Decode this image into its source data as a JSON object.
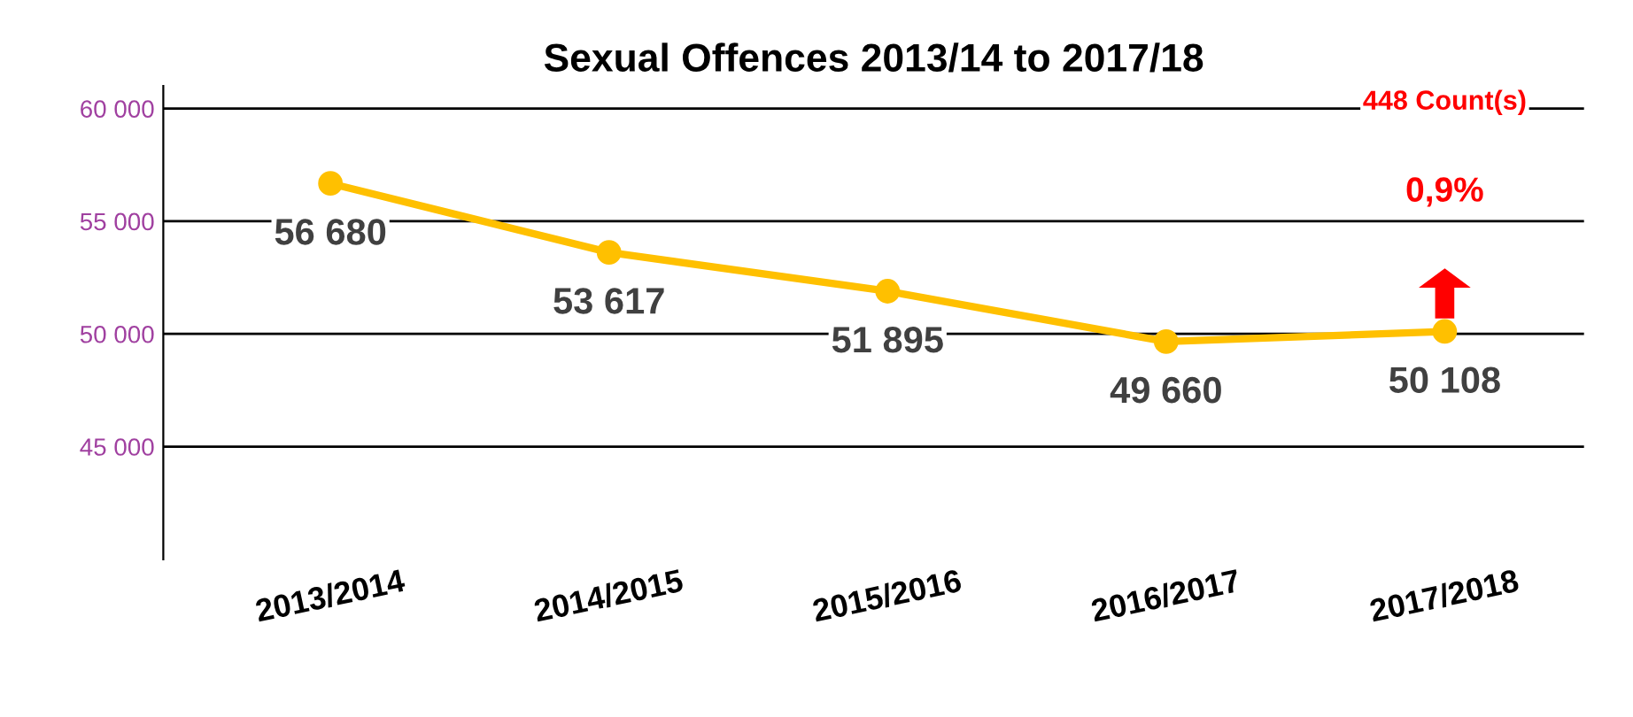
{
  "chart_data": {
    "type": "line",
    "title": "Sexual Offences 2013/14 to 2017/18",
    "categories": [
      "2013/2014",
      "2014/2015",
      "2015/2016",
      "2016/2017",
      "2017/2018"
    ],
    "series": [
      {
        "color": "#ffc000",
        "values": [
          56680,
          53617,
          51895,
          49660,
          50108
        ],
        "value_labels": [
          "56 680",
          "53 617",
          "51 895",
          "49 660",
          "50 108"
        ]
      }
    ],
    "ylim": [
      40000,
      61000
    ],
    "yticks": [
      {
        "value": 45000,
        "label": "45 000"
      },
      {
        "value": 50000,
        "label": "50 000"
      },
      {
        "value": 55000,
        "label": "55 000"
      },
      {
        "value": 60000,
        "label": "60 000"
      }
    ],
    "annotations": [
      "448 Count(s)",
      "0,9%"
    ],
    "grid": "y",
    "marker": "circle",
    "line_style": "solid",
    "legend": false
  }
}
